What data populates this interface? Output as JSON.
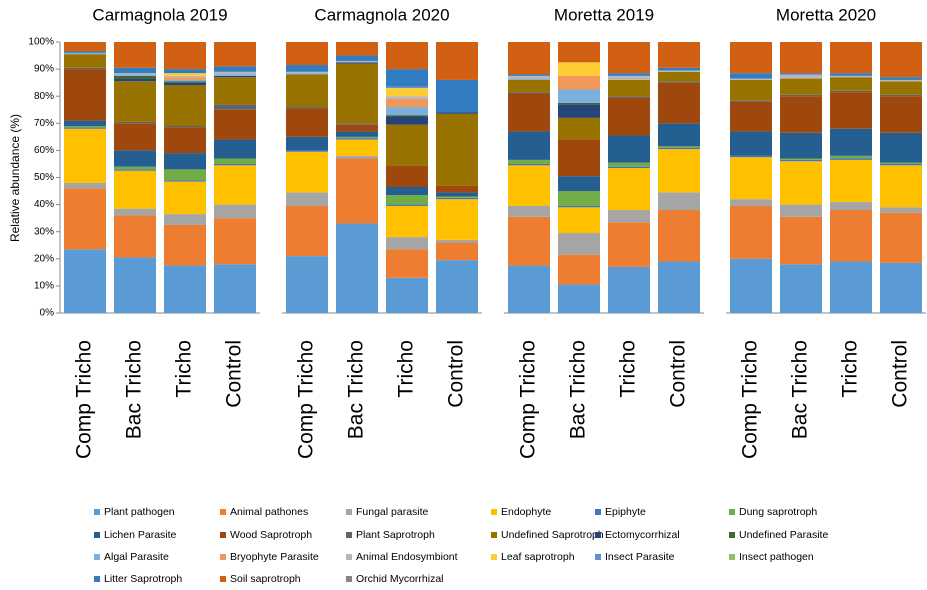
{
  "chart_data": {
    "type": "bar",
    "stacked": true,
    "panel_titles": [
      "Carmagnola 2019",
      "Carmagnola 2020",
      "Moretta 2019",
      "Moretta 2020"
    ],
    "ylabel": "Relative abundance (%)",
    "categories": [
      "Comp Tricho",
      "Bac Tricho",
      "Tricho",
      "Control",
      "Comp Tricho",
      "Bac Tricho",
      "Tricho",
      "Control",
      "Comp Tricho",
      "Bac Tricho",
      "Tricho",
      "Control",
      "Comp Tricho",
      "Bac Tricho",
      "Tricho",
      "Control"
    ],
    "ylim": [
      0,
      100
    ],
    "yticks": [
      {
        "value": 0,
        "label": "0%"
      },
      {
        "value": 10,
        "label": "10%"
      },
      {
        "value": 20,
        "label": "20%"
      },
      {
        "value": 30,
        "label": "30%"
      },
      {
        "value": 40,
        "label": "40%"
      },
      {
        "value": 50,
        "label": "50%"
      },
      {
        "value": 60,
        "label": "60%"
      },
      {
        "value": 70,
        "label": "70%"
      },
      {
        "value": 80,
        "label": "80%"
      },
      {
        "value": 90,
        "label": "90%"
      },
      {
        "value": 100,
        "label": "100%"
      }
    ],
    "series": [
      {
        "name": "Plant pathogen",
        "color": "#5b9bd5",
        "values": [
          23.5,
          20.5,
          17.5,
          18,
          21,
          33,
          13,
          19.5,
          17.5,
          10.5,
          17,
          19,
          20,
          18,
          19,
          18.5
        ]
      },
      {
        "name": "Animal pathones",
        "color": "#ed7d31",
        "values": [
          22.5,
          15.5,
          15,
          17,
          18.5,
          24,
          10.5,
          6.5,
          18,
          11,
          16.5,
          19,
          19.5,
          17.5,
          19,
          18.5
        ]
      },
      {
        "name": "Fungal parasite",
        "color": "#a5a5a5",
        "values": [
          2,
          2.5,
          4,
          5,
          5,
          1,
          4.5,
          1,
          4,
          8,
          4.5,
          6.5,
          2.5,
          4.5,
          3,
          2
        ]
      },
      {
        "name": "Endophyte",
        "color": "#ffc000",
        "values": [
          20,
          14,
          12,
          14.5,
          15,
          6,
          11.5,
          15,
          15,
          9.5,
          15.5,
          16,
          15.5,
          16,
          15.5,
          15.5
        ]
      },
      {
        "name": "Epiphyte",
        "color": "#4472c4",
        "values": [
          0.5,
          0.5,
          0.5,
          0.5,
          0.5,
          0.5,
          0.5,
          0.5,
          0.5,
          0.5,
          0.5,
          0.5,
          0.5,
          0.5,
          0.5,
          0.5
        ]
      },
      {
        "name": "Dung saprotroph",
        "color": "#70ad47",
        "values": [
          0.5,
          1,
          4,
          2,
          0,
          0.5,
          3.5,
          0.5,
          1.5,
          5.5,
          1.5,
          0.5,
          0,
          0.5,
          1,
          0.5
        ]
      },
      {
        "name": "Lichen Parasite",
        "color": "#255e91",
        "values": [
          2,
          6,
          6,
          7,
          5,
          2,
          3,
          1.5,
          10.5,
          5.5,
          10,
          8.5,
          9,
          9.5,
          10,
          11
        ]
      },
      {
        "name": "Wood Saprotroph",
        "color": "#9e480e",
        "values": [
          19,
          10,
          9.5,
          11,
          10.5,
          2.5,
          8,
          2.5,
          14,
          13.5,
          14,
          15,
          11,
          13.5,
          13.5,
          13.5
        ]
      },
      {
        "name": "Plant Saprotroph",
        "color": "#636363",
        "values": [
          0.5,
          0.5,
          0.5,
          2,
          0.5,
          0.5,
          0,
          0,
          0.5,
          0,
          0.5,
          0.5,
          0.5,
          0.5,
          0.5,
          0.5
        ]
      },
      {
        "name": "Undefined Saprotroph",
        "color": "#997300",
        "values": [
          5,
          15,
          15,
          10,
          12,
          22,
          15,
          26.5,
          4.5,
          8,
          6,
          3.5,
          7.5,
          6,
          5,
          5
        ]
      },
      {
        "name": "Ectomycorrhizal",
        "color": "#264478",
        "values": [
          0,
          1,
          1,
          0.5,
          0,
          0.5,
          3,
          0.5,
          0,
          5,
          0,
          0,
          0,
          0,
          0,
          0
        ]
      },
      {
        "name": "Undefined Parasite",
        "color": "#43682b",
        "values": [
          0,
          1,
          0.5,
          0,
          0,
          0,
          0.5,
          0,
          0,
          0.5,
          0,
          0,
          0,
          0,
          0,
          0
        ]
      },
      {
        "name": "Algal Parasite",
        "color": "#7cafdd",
        "values": [
          0.5,
          0.5,
          0.5,
          0.5,
          0.5,
          0,
          3,
          0,
          0.5,
          5,
          0,
          0,
          0,
          0,
          0,
          0
        ]
      },
      {
        "name": "Bryophyte Parasite",
        "color": "#f1975a",
        "values": [
          0,
          0,
          1,
          0,
          0,
          0,
          3,
          0,
          0,
          5,
          0,
          0,
          0,
          0,
          0,
          0
        ]
      },
      {
        "name": "Animal Endosymbiont",
        "color": "#b7b7b7",
        "values": [
          0,
          0.5,
          0.5,
          1,
          0.5,
          0.5,
          1,
          0,
          1,
          0,
          1.5,
          0.5,
          0.5,
          1.5,
          0.5,
          0.5
        ]
      },
      {
        "name": "Leaf saprotroph",
        "color": "#ffcd33",
        "values": [
          0,
          0,
          1,
          0,
          0,
          0,
          3,
          0,
          0,
          5,
          0,
          0,
          0,
          0,
          0,
          0
        ]
      },
      {
        "name": "Insect Parasite",
        "color": "#698ed0",
        "values": [
          0,
          0,
          0,
          0,
          0,
          0,
          0.5,
          0,
          0,
          0,
          0,
          0,
          0,
          0,
          0,
          0
        ]
      },
      {
        "name": "Insect pathogen",
        "color": "#8cc168",
        "values": [
          0,
          0,
          0,
          0,
          0,
          0,
          0,
          0,
          0,
          0,
          0,
          0,
          0,
          0,
          0,
          0
        ]
      },
      {
        "name": "Litter Saprotroph",
        "color": "#327dc2",
        "values": [
          0.5,
          2,
          1.5,
          2,
          2.5,
          2,
          6.5,
          12,
          0.5,
          0,
          1,
          1,
          2,
          0.5,
          1,
          1
        ]
      },
      {
        "name": "Soil saprotroph",
        "color": "#d26012",
        "values": [
          3.5,
          9.5,
          10,
          9,
          8.5,
          5,
          10,
          14,
          12,
          7.5,
          11.5,
          9.5,
          11.5,
          11.5,
          11.5,
          13
        ]
      },
      {
        "name": "Orchid Mycorrhizal",
        "color": "#848484",
        "values": [
          0,
          0,
          0,
          0,
          0,
          0,
          0,
          0,
          0,
          0,
          0,
          0,
          0,
          0,
          0,
          0
        ]
      }
    ]
  }
}
